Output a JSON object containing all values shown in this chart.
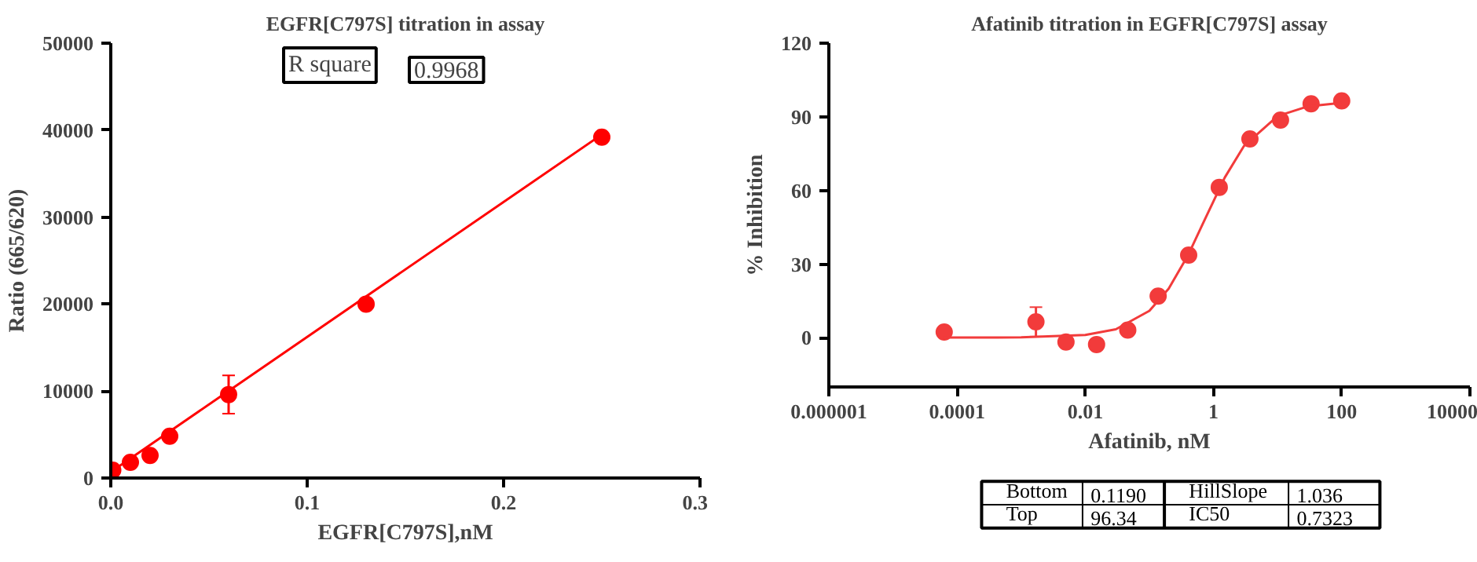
{
  "chart_data": [
    {
      "type": "scatter",
      "title": "EGFR[C797S] titration in assay",
      "xlabel": "EGFR[C797S],nM",
      "ylabel": "Ratio (665/620)",
      "xlim": [
        0,
        0.3
      ],
      "xticks": [
        {
          "value": 0,
          "label": "0.0"
        },
        0.1,
        0.2,
        0.3
      ],
      "ylim": [
        0,
        50000
      ],
      "yticks": [
        0,
        10000,
        20000,
        30000,
        40000,
        50000
      ],
      "annotations": [
        "R square",
        "0.9968"
      ],
      "series": [
        {
          "marker": "circle",
          "color": "#ff0000",
          "x": [
            0.001,
            0.01,
            0.02,
            0.03,
            0.06,
            0.13,
            0.25
          ],
          "values": [
            900,
            1800,
            2600,
            4800,
            9600,
            20000,
            39200
          ],
          "errors": [
            null,
            null,
            null,
            null,
            2200,
            null,
            null
          ]
        },
        {
          "type": "line",
          "color": "#ff0000",
          "x": [
            0,
            0.25
          ],
          "values": [
            700,
            39500
          ]
        }
      ]
    },
    {
      "type": "scatter",
      "title": "Afatinib titration in EGFR[C797S] assay",
      "xlabel": "Afatinib, nM",
      "ylabel": "% Inhibition",
      "log": "x",
      "xlim": [
        1e-06,
        10000
      ],
      "xticks": [
        {
          "value": 1e-06,
          "label": "0.000001"
        },
        {
          "value": 0.0001,
          "label": "0.0001"
        },
        {
          "value": 0.01,
          "label": "0.01"
        },
        1,
        100,
        10000
      ],
      "ylim": [
        -20,
        120
      ],
      "yticks": [
        0,
        30,
        60,
        90,
        120
      ],
      "annotations": [
        "Bottom",
        "0.1190",
        "HillSlope",
        "1.036",
        "Top",
        "96.34",
        "IC50",
        "0.7323"
      ],
      "series": [
        {
          "marker": "circle",
          "color": "#f23b3b",
          "x": [
            6.3e-05,
            0.0017,
            0.005,
            0.015,
            0.046,
            0.137,
            0.41,
            1.23,
            3.7,
            11.1,
            33.3,
            100
          ],
          "values": [
            2.4,
            6.5,
            -1.7,
            -2.7,
            3.2,
            17,
            33.7,
            61.3,
            81,
            88.7,
            95.3,
            96.5
          ],
          "errors": [
            null,
            6,
            null,
            2,
            null,
            null,
            null,
            null,
            null,
            null,
            null,
            null
          ]
        },
        {
          "type": "line",
          "color": "#f23b3b",
          "x": [
            6e-05,
            0.001,
            0.01,
            0.03,
            0.1,
            0.2,
            0.4,
            0.7323,
            1.5,
            3,
            10,
            30,
            100
          ],
          "values": [
            0.1,
            0.2,
            1.2,
            3.5,
            11,
            20,
            33.6,
            48.2,
            65.3,
            78.2,
            90.3,
            94.3,
            95.7
          ]
        }
      ]
    }
  ]
}
